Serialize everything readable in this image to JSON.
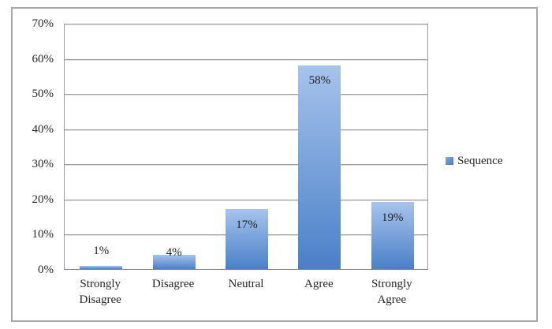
{
  "chart_data": {
    "type": "bar",
    "title": "",
    "xlabel": "",
    "ylabel": "",
    "categories": [
      "Strongly Disagree",
      "Disagree",
      "Neutral",
      "Agree",
      "Strongly Agree"
    ],
    "series": [
      {
        "name": "Sequence",
        "values": [
          1,
          4,
          17,
          58,
          19
        ],
        "data_labels": [
          "1%",
          "4%",
          "17%",
          "58%",
          "19%"
        ]
      }
    ],
    "ylim": [
      0,
      70
    ],
    "ytick_step": 10,
    "ytick_labels": [
      "0%",
      "10%",
      "20%",
      "30%",
      "40%",
      "50%",
      "60%",
      "70%"
    ],
    "grid": true,
    "legend_position": "right",
    "colors": {
      "bar_gradient_top": "#a6c3ec",
      "bar_gradient_bottom": "#4a80c8",
      "gridline": "#9e9e9e",
      "frame_border": "#a8a8a8",
      "text": "#262626"
    }
  },
  "legend": {
    "label": "Sequence"
  }
}
